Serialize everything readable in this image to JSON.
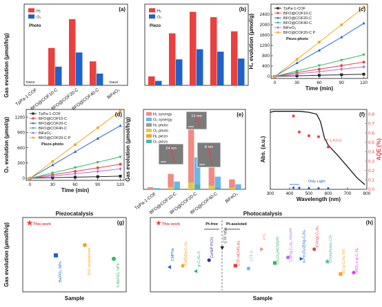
{
  "colors": {
    "red": "#e8413f",
    "blue": "#1f63c8",
    "black": "#222222",
    "orange": "#f5a623",
    "green": "#2fb866",
    "purple": "#b36be0",
    "salmon": "#f08a82",
    "lightblue": "#6bb7ea",
    "gray": "#9a9a9a",
    "yellow": "#e3c64a",
    "teal": "#4db6ac"
  },
  "chart_data": [
    {
      "type": "bar",
      "panel": "(a)",
      "annotation": "Photo",
      "ylabel": "Gas evolution (μmol/h/g)",
      "categories": [
        "TpPa-1-COF",
        "BFO@COF10-C",
        "BFO@COF20-C",
        "BFO@COF40-C",
        "BiFeO₃"
      ],
      "series": [
        {
          "name": "H₂",
          "color": "#e8413f",
          "values": [
            0,
            9.2,
            16.3,
            5.9,
            0
          ]
        },
        {
          "name": "O₂",
          "color": "#1f63c8",
          "values": [
            0,
            4.6,
            8.1,
            2.9,
            0
          ]
        }
      ],
      "labels": [
        "trace",
        "trace"
      ],
      "ylim": [
        0,
        20
      ]
    },
    {
      "type": "bar",
      "panel": "(b)",
      "annotation": "Piezo",
      "categories": [
        "TpPa-1-COF",
        "BFO@COF10-C",
        "BFO@COF20-C",
        "BFO@COF40-C",
        "BiFeO₃"
      ],
      "series": [
        {
          "name": "H₂",
          "color": "#e8413f",
          "values": [
            22,
            128,
            181,
            168,
            133
          ]
        },
        {
          "name": "O₂",
          "color": "#1f63c8",
          "values": [
            11,
            64,
            89,
            83,
            66
          ]
        }
      ],
      "ylim": [
        0,
        200
      ]
    },
    {
      "type": "line",
      "panel": "(c)",
      "annotation": "Piezo-photo",
      "xlabel": "Time (min)",
      "ylabel": "H₂ evolution (μmol/g)",
      "x": [
        0,
        30,
        60,
        90,
        120
      ],
      "xticks": [
        0,
        30,
        60,
        90,
        120
      ],
      "yticks": [
        0,
        400,
        800,
        1200,
        1600,
        2000,
        2400
      ],
      "xlim": [
        -5,
        125
      ],
      "ylim": [
        -80,
        2800
      ],
      "series": [
        {
          "name": "TpPa-1-COF",
          "color": "#222222",
          "marker": "square",
          "values": [
            0,
            25,
            45,
            65,
            85
          ]
        },
        {
          "name": "BFO@COF10-C",
          "color": "#e8413f",
          "marker": "circle",
          "values": [
            0,
            150,
            280,
            420,
            555
          ]
        },
        {
          "name": "BFO@COF20-C",
          "color": "#1f63c8",
          "marker": "triangle",
          "values": [
            0,
            520,
            1010,
            1520,
            2060
          ]
        },
        {
          "name": "BFO@COF40-C",
          "color": "#2fb866",
          "marker": "triangle-down",
          "values": [
            0,
            210,
            420,
            630,
            840
          ]
        },
        {
          "name": "BiFeO₃",
          "color": "#b36be0",
          "marker": "diamond",
          "values": [
            0,
            95,
            185,
            280,
            370
          ]
        },
        {
          "name": "BFO@COF20-C P",
          "color": "#f5a623",
          "marker": "pentagon",
          "values": [
            0,
            660,
            1330,
            2000,
            2680
          ]
        }
      ]
    },
    {
      "type": "line",
      "panel": "(d)",
      "annotation": "Piezo-photo",
      "xlabel": "Time (min)",
      "ylabel": "O₂ evolution (μmol/g)",
      "x": [
        0,
        30,
        60,
        90,
        120
      ],
      "xticks": [
        0,
        30,
        60,
        90,
        120
      ],
      "yticks": [
        0,
        300,
        600,
        900,
        1200
      ],
      "xlim": [
        -5,
        125
      ],
      "ylim": [
        -40,
        1350
      ],
      "series": [
        {
          "name": "TpPa-1-COF",
          "color": "#222222",
          "marker": "square",
          "values": [
            0,
            12,
            22,
            32,
            42
          ]
        },
        {
          "name": "BFO@COF10-C",
          "color": "#e8413f",
          "marker": "circle",
          "values": [
            0,
            70,
            135,
            205,
            275
          ]
        },
        {
          "name": "BFO@COF20-C",
          "color": "#1f63c8",
          "marker": "triangle",
          "values": [
            0,
            260,
            520,
            780,
            1030
          ]
        },
        {
          "name": "BFO@COF40-C",
          "color": "#2fb866",
          "marker": "triangle-down",
          "values": [
            0,
            105,
            210,
            315,
            420
          ]
        },
        {
          "name": "BiFeO₃",
          "color": "#b36be0",
          "marker": "diamond",
          "values": [
            0,
            45,
            90,
            135,
            185
          ]
        },
        {
          "name": "BFO@COF20-C P",
          "color": "#f5a623",
          "marker": "pentagon",
          "values": [
            0,
            330,
            660,
            990,
            1320
          ]
        }
      ]
    },
    {
      "type": "bar",
      "panel": "(e)",
      "ylabel": "Gas evolution (μmol/h/g)",
      "categories": [
        "TpPa-1-COF",
        "BFO@COF10-C",
        "BFO@COF20-C",
        "BFO@COF40-C",
        "BiFeO₃"
      ],
      "legend": [
        "H₂ synergy",
        "O₂ synergy",
        "H₂ photo",
        "O₂ photo",
        "H₂ piezo",
        "O₂ piezo"
      ],
      "images": [
        "13 nm",
        "24 nm",
        "8 nm"
      ],
      "series": [
        {
          "name": "H₂ synergy",
          "color": "#f08a82",
          "values": [
            40,
            280,
            1330,
            460,
            180
          ]
        },
        {
          "name": "O₂ synergy",
          "color": "#6bb7ea",
          "values": [
            22,
            140,
            580,
            230,
            92
          ]
        }
      ],
      "ylim": [
        0,
        1450
      ]
    },
    {
      "type": "line",
      "panel": "(f)",
      "xlabel": "Wavelength (nm)",
      "ylabel": "Abs. (a.u.)",
      "y2label": "AQE (%)",
      "annotation": "L+U-U",
      "label_only_light": "Only Light",
      "xticks": [
        300,
        400,
        500,
        600,
        700,
        800
      ],
      "y2ticks": [
        0.0,
        0.1,
        0.2,
        0.3,
        0.4,
        0.5,
        0.6,
        0.7,
        0.8
      ],
      "xlim": [
        300,
        800
      ],
      "y2lim": [
        0,
        0.85
      ],
      "series": [
        {
          "name": "Absorbance",
          "color": "#111111",
          "x": [
            300,
            320,
            350,
            400,
            450,
            500,
            540,
            560,
            580,
            600,
            650,
            700,
            750,
            790
          ],
          "values": [
            0.82,
            0.83,
            0.83,
            0.83,
            0.83,
            0.82,
            0.8,
            0.72,
            0.55,
            0.47,
            0.36,
            0.24,
            0.12,
            0.05
          ]
        },
        {
          "name": "AQE",
          "color": "#e8413f",
          "x": [
            420,
            450,
            500,
            550,
            600
          ],
          "values": [
            0.78,
            0.61,
            0.57,
            0.56,
            0.45
          ]
        },
        {
          "name": "AQE only light",
          "color": "#1f63c8",
          "x": [
            420,
            450,
            500,
            550,
            600
          ],
          "values": [
            0.01,
            0.008,
            0.006,
            0.004,
            0.003
          ]
        }
      ]
    },
    {
      "type": "scatter",
      "panel": "(g)",
      "title": "Piezocatalysis",
      "xlabel": "Sample",
      "ylabel": "Gas evolution (μmol/h/g)",
      "points": [
        {
          "label": "This work",
          "color": "#e8413f",
          "marker": "star"
        },
        {
          "label": "BaTiO₃ NPs",
          "color": "#1f63c8",
          "marker": "square"
        },
        {
          "label": "ZnS nanosheets",
          "color": "#f5a623",
          "marker": "circle"
        },
        {
          "label": "h-BaTiO₃ NPs",
          "color": "#2fb866",
          "marker": "circle"
        }
      ]
    },
    {
      "type": "scatter",
      "panel": "(h)",
      "title": "Photocatalysis",
      "xlabel": "Sample",
      "left_label": "Pt-free",
      "right_label": "Pt-assisted",
      "points": [
        {
          "label": "This work",
          "color": "#e8413f",
          "marker": "star"
        },
        {
          "label": "CMPNs",
          "color": "#1f63c8",
          "marker": "triangle-left"
        },
        {
          "label": "CdO@g-C₃N₄",
          "color": "#f5a623",
          "marker": "circle"
        },
        {
          "label": "g-C₃N₄-C",
          "color": "#2fb866",
          "marker": "triangle-left"
        },
        {
          "label": "CoNiP-PCN",
          "color": "#333399",
          "marker": "circle"
        },
        {
          "label": "CTF NSs",
          "color": "#222222",
          "marker": "triangle-down"
        },
        {
          "label": "CTF-HCHS-A1",
          "color": "#e8413f",
          "marker": "square"
        },
        {
          "label": "CTF-0",
          "color": "#6bb7ea",
          "marker": "circle"
        },
        {
          "label": "PTI",
          "color": "#f08a82",
          "marker": "triangle-right"
        },
        {
          "label": "Co₃O₄/HCNS/Pt",
          "color": "#2fb866",
          "marker": "square"
        },
        {
          "label": "CoP/g-C₃N₄ NSs/Pt",
          "color": "#b36be0",
          "marker": "circle"
        },
        {
          "label": "α-Fe₂O₃/2D/g-C₃N₄",
          "color": "#1f63c8",
          "marker": "triangle-right"
        },
        {
          "label": "(Cring)-C₃N₄",
          "color": "#e8413f",
          "marker": "circle"
        },
        {
          "label": "CDots/holey CN",
          "color": "#4db6ac",
          "marker": "star"
        },
        {
          "label": "3D g-C₃N₄ NS",
          "color": "#f5a623",
          "marker": "square"
        },
        {
          "label": "WO₃-x-g-C₃N₄",
          "color": "#e040fb",
          "marker": "circle"
        }
      ]
    }
  ]
}
